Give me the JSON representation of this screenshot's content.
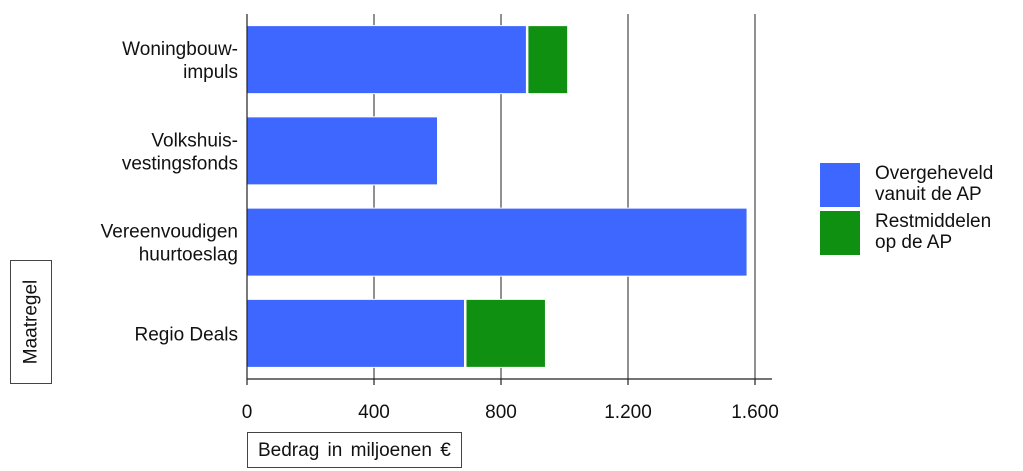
{
  "chart_data": {
    "type": "bar",
    "orientation": "horizontal",
    "stacked": true,
    "categories": [
      [
        "Woningbouw-",
        "impuls"
      ],
      [
        "Volkshuis-",
        "vestingsfonds"
      ],
      [
        "Vereenvoudigen",
        "huurtoeslag"
      ],
      [
        "Regio Deals"
      ]
    ],
    "series": [
      {
        "name": "Overgeheveld vanuit de AP",
        "name_lines": [
          "Overgeheveld",
          "vanuit de AP"
        ],
        "color": "#3d67ff",
        "values": [
          880,
          600,
          1575,
          685
        ]
      },
      {
        "name": "Restmiddelen op de AP",
        "name_lines": [
          "Restmiddelen",
          "op de AP"
        ],
        "color": "#109010",
        "values": [
          130,
          0,
          0,
          255
        ]
      }
    ],
    "xlabel": "Bedrag in miljoenen €",
    "ylabel": "Maatregel",
    "xlim": [
      0,
      1600
    ],
    "xticks": [
      0,
      400,
      800,
      1200,
      1600
    ],
    "xtick_labels": [
      "0",
      "400",
      "800",
      "1.200",
      "1.600"
    ],
    "grid": "vertical",
    "legend_position": "right"
  }
}
